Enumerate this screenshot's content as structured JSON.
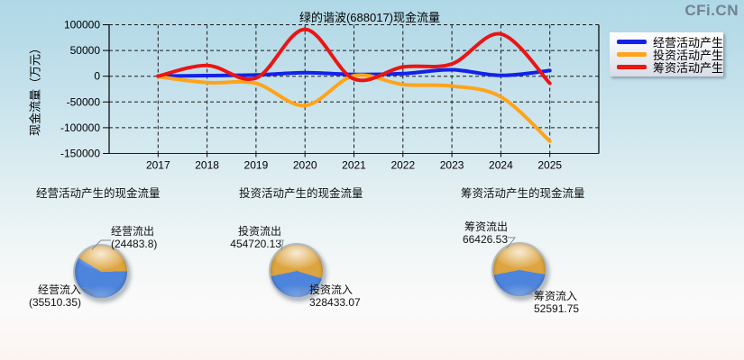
{
  "logo": "CFi.CN",
  "colors": {
    "grid": "#1a1a1a",
    "pie_outflow": "#dda43f",
    "pie_inflow": "#4d84dc"
  },
  "chart_data": [
    {
      "type": "line",
      "title": "绿的谐波(688017)现金流量",
      "ylabel": "现金流量（万元）",
      "x": [
        2017,
        2018,
        2019,
        2020,
        2021,
        2022,
        2023,
        2024,
        2025
      ],
      "series": [
        {
          "name": "经营活动产生",
          "color": "#1322e8",
          "values": [
            300,
            1200,
            2500,
            7000,
            3500,
            5000,
            12500,
            1500,
            11026.55
          ]
        },
        {
          "name": "投资活动产生",
          "color": "#ffa41a",
          "values": [
            -800,
            -12500,
            -14000,
            -57000,
            1000,
            -16000,
            -19000,
            -40000,
            -126287.06
          ]
        },
        {
          "name": "筹资活动产生",
          "color": "#ea1515",
          "values": [
            200,
            21000,
            -3500,
            91000,
            -5500,
            18000,
            24000,
            82000,
            -13834.78
          ]
        }
      ],
      "ylim": [
        -150000,
        100000
      ],
      "yticks": [
        100000,
        50000,
        0,
        -50000,
        -100000,
        -150000
      ],
      "xlim": [
        2016,
        2026
      ],
      "grid": true,
      "legend_position": "right"
    },
    {
      "type": "pie",
      "title": "经营活动产生的现金流量",
      "labels": [
        "经营流出",
        "经营流入"
      ],
      "values": [
        24483.8,
        35510.35
      ],
      "display": [
        "(24483.8)",
        "(35510.35)"
      ]
    },
    {
      "type": "pie",
      "title": "投资活动产生的现金流量",
      "labels": [
        "投资流出",
        "投资流入"
      ],
      "values": [
        454720.13,
        328433.07
      ],
      "display": [
        "454720.13",
        "328433.07"
      ]
    },
    {
      "type": "pie",
      "title": "筹资活动产生的现金流量",
      "labels": [
        "筹资流出",
        "筹资流入"
      ],
      "values": [
        66426.53,
        52591.75
      ],
      "display": [
        "66426.53",
        "52591.75"
      ]
    }
  ]
}
